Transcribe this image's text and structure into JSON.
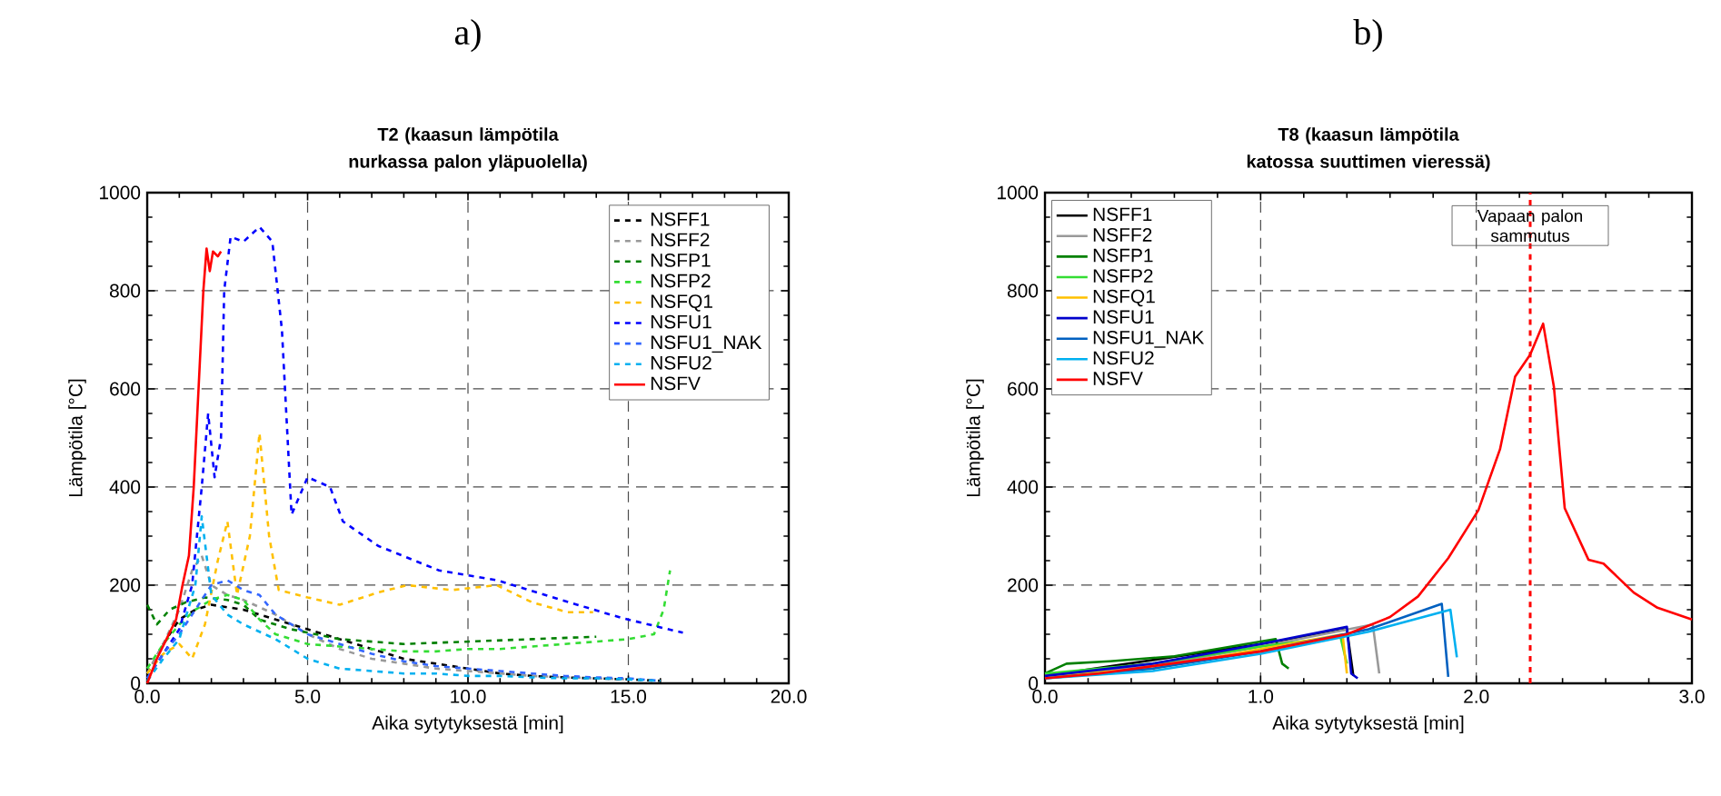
{
  "chart_data": [
    {
      "type": "line",
      "title": "a)",
      "subtitle": "T2 (kaasun lämpötila nurkassa palon yläpuolella)",
      "xlabel": "Aika sytytyksestä [min]",
      "ylabel": "Lämpötila  [°C]",
      "xlim": [
        0,
        20
      ],
      "ylim": [
        0,
        1000
      ],
      "xticks": [
        {
          "value": 0,
          "label": "0.0"
        },
        {
          "value": 5,
          "label": "5.0"
        },
        {
          "value": 10,
          "label": "10.0"
        },
        {
          "value": 15,
          "label": "15.0"
        },
        {
          "value": 20,
          "label": "20.0"
        }
      ],
      "yticks": [
        0,
        200,
        400,
        600,
        800,
        1000
      ],
      "grid": true,
      "legend": "top right",
      "series": [
        {
          "name": "NSFF1",
          "color": "#000000",
          "line_style": "dashed",
          "x": [
            0,
            0.5,
            1,
            1.5,
            2,
            3,
            4,
            5,
            6,
            7,
            8,
            9,
            10,
            11,
            12,
            13,
            14,
            15,
            16
          ],
          "values": [
            20,
            80,
            130,
            150,
            160,
            150,
            130,
            110,
            90,
            70,
            50,
            40,
            30,
            20,
            15,
            12,
            10,
            8,
            5
          ]
        },
        {
          "name": "NSFF2",
          "color": "#999999",
          "line_style": "dashed",
          "x": [
            0,
            0.5,
            1,
            1.4,
            1.7,
            2,
            2.5,
            3,
            4,
            5,
            6,
            7,
            8,
            9,
            10,
            12,
            14,
            15
          ],
          "values": [
            20,
            80,
            150,
            230,
            260,
            200,
            180,
            170,
            140,
            100,
            70,
            50,
            40,
            30,
            25,
            15,
            10,
            8
          ]
        },
        {
          "name": "NSFP1",
          "color": "#008000",
          "line_style": "dashed",
          "x": [
            0,
            0.3,
            0.7,
            1.2,
            1.8,
            2.5,
            3,
            3.5,
            4.5,
            6,
            8,
            10,
            12,
            14
          ],
          "values": [
            160,
            120,
            150,
            165,
            175,
            170,
            160,
            130,
            110,
            90,
            80,
            85,
            90,
            95
          ]
        },
        {
          "name": "NSFP2",
          "color": "#33dd33",
          "line_style": "dashed",
          "x": [
            0,
            0.5,
            1,
            1.5,
            2,
            2.5,
            3,
            3.5,
            4,
            5,
            6,
            7,
            8,
            9,
            10,
            11,
            12,
            13,
            14,
            15,
            15.8,
            16.1,
            16.3
          ],
          "values": [
            30,
            80,
            120,
            150,
            170,
            180,
            170,
            130,
            100,
            80,
            75,
            70,
            65,
            65,
            70,
            70,
            75,
            80,
            85,
            90,
            100,
            150,
            230
          ]
        },
        {
          "name": "NSFQ1",
          "color": "#ffc000",
          "line_style": "dashed",
          "x": [
            0,
            0.5,
            1,
            1.4,
            1.8,
            2.2,
            2.5,
            2.8,
            3.2,
            3.5,
            3.8,
            4.1,
            5,
            6,
            7.2,
            8.1,
            9.5,
            10.9,
            12,
            13.1,
            13.9
          ],
          "values": [
            20,
            60,
            80,
            50,
            120,
            250,
            330,
            180,
            300,
            510,
            300,
            190,
            175,
            160,
            185,
            200,
            190,
            200,
            165,
            145,
            145
          ]
        },
        {
          "name": "NSFU1",
          "color": "#0000ff",
          "line_style": "dashed",
          "x": [
            0,
            0.5,
            1,
            1.4,
            1.7,
            1.9,
            2.1,
            2.3,
            2.4,
            2.6,
            3,
            3.5,
            3.9,
            4.2,
            4.5,
            5,
            5.7,
            6.1,
            7.2,
            9.1,
            10.9,
            12.9,
            14.8,
            16.7
          ],
          "values": [
            10,
            60,
            110,
            200,
            400,
            550,
            420,
            500,
            800,
            910,
            900,
            930,
            900,
            720,
            344,
            420,
            400,
            330,
            280,
            230,
            210,
            170,
            133,
            103
          ]
        },
        {
          "name": "NSFU1_NAK",
          "color": "#3366ff",
          "line_style": "dashed",
          "x": [
            0,
            0.5,
            1,
            1.5,
            2,
            2.5,
            3,
            3.5,
            4,
            5,
            6,
            7,
            8,
            9,
            10,
            11,
            12,
            13,
            14,
            15,
            16
          ],
          "values": [
            10,
            60,
            100,
            150,
            200,
            210,
            190,
            180,
            140,
            100,
            80,
            60,
            45,
            35,
            30,
            25,
            20,
            15,
            12,
            10,
            5
          ]
        },
        {
          "name": "NSFU2",
          "color": "#00b0f0",
          "line_style": "dashed",
          "x": [
            0,
            0.5,
            1,
            1.5,
            1.7,
            2,
            2.5,
            3,
            4,
            5,
            6,
            7,
            8,
            9,
            10,
            11,
            12,
            13,
            14,
            15,
            16
          ],
          "values": [
            5,
            50,
            90,
            200,
            340,
            180,
            140,
            120,
            90,
            50,
            30,
            25,
            20,
            20,
            15,
            15,
            12,
            10,
            10,
            8,
            5
          ]
        },
        {
          "name": "NSFV",
          "color": "#ff0000",
          "line_style": "solid",
          "x": [
            0,
            0.3,
            0.6,
            0.9,
            1.1,
            1.3,
            1.45,
            1.6,
            1.75,
            1.85,
            1.95,
            2.05,
            2.2,
            2.3
          ],
          "values": [
            0,
            50,
            90,
            130,
            200,
            260,
            400,
            600,
            800,
            886,
            840,
            880,
            870,
            880
          ]
        }
      ]
    },
    {
      "type": "line",
      "title": "b)",
      "subtitle": "T8 (kaasun lämpötila katossa suuttimen vieressä)",
      "xlabel": "Aika sytytyksestä [min]",
      "ylabel": "Lämpötila  [°C]",
      "xlim": [
        0,
        3
      ],
      "ylim": [
        0,
        1000
      ],
      "xticks": [
        {
          "value": 0,
          "label": "0.0"
        },
        {
          "value": 1,
          "label": "1.0"
        },
        {
          "value": 2,
          "label": "2.0"
        },
        {
          "value": 3,
          "label": "3.0"
        }
      ],
      "yticks": [
        0,
        200,
        400,
        600,
        800,
        1000
      ],
      "grid": true,
      "legend": "top left",
      "ref_lines": [
        {
          "axis": "x",
          "value": 2.25,
          "label": "Vapaan palon sammutus",
          "color": "#ff0000",
          "line_style": "dashed"
        }
      ],
      "series": [
        {
          "name": "NSFF1",
          "color": "#000000",
          "line_style": "solid",
          "x": [
            0,
            0.5,
            1.0,
            1.4,
            1.43
          ],
          "values": [
            15,
            null,
            80,
            110,
            15
          ]
        },
        {
          "name": "NSFF2",
          "color": "#999999",
          "line_style": "solid",
          "x": [
            0,
            0.5,
            1.0,
            1.52,
            1.55
          ],
          "values": [
            15,
            35,
            75,
            120,
            20
          ]
        },
        {
          "name": "NSFP1",
          "color": "#008000",
          "line_style": "solid",
          "x": [
            0,
            0.1,
            0.3,
            0.6,
            1.0,
            1.07,
            1.1,
            1.13
          ],
          "values": [
            20,
            40,
            45,
            55,
            85,
            90,
            40,
            30
          ]
        },
        {
          "name": "NSFP2",
          "color": "#33dd33",
          "line_style": "solid",
          "x": [
            0,
            0.5,
            1.0,
            1.37,
            1.4
          ],
          "values": [
            20,
            40,
            75,
            95,
            40
          ]
        },
        {
          "name": "NSFQ1",
          "color": "#ffc000",
          "line_style": "solid",
          "x": [
            0,
            0.5,
            1.0,
            1.38,
            1.4
          ],
          "values": [
            15,
            30,
            70,
            100,
            20
          ]
        },
        {
          "name": "NSFU1",
          "color": "#0000cc",
          "line_style": "solid",
          "x": [
            0,
            0.5,
            1.0,
            1.4,
            1.42,
            1.45
          ],
          "values": [
            15,
            40,
            80,
            115,
            20,
            10
          ]
        },
        {
          "name": "NSFU1_NAK",
          "color": "#0060c0",
          "line_style": "solid",
          "x": [
            0,
            0.5,
            1.0,
            1.5,
            1.84,
            1.87
          ],
          "values": [
            10,
            30,
            65,
            110,
            162,
            13
          ]
        },
        {
          "name": "NSFU2",
          "color": "#00b0f0",
          "line_style": "solid",
          "x": [
            0,
            0.5,
            1.0,
            1.5,
            1.88,
            1.91
          ],
          "values": [
            10,
            25,
            60,
            105,
            150,
            53
          ]
        },
        {
          "name": "NSFV",
          "color": "#ff0000",
          "line_style": "solid",
          "x": [
            0,
            0.25,
            0.5,
            1.0,
            1.4,
            1.6,
            1.73,
            1.87,
            2.01,
            2.11,
            2.18,
            2.25,
            2.31,
            2.36,
            2.41,
            2.52,
            2.59,
            2.73,
            2.84,
            3.0
          ],
          "values": [
            10,
            20,
            35,
            65,
            100,
            135,
            177,
            255,
            353,
            477,
            625,
            670,
            733,
            604,
            357,
            252,
            244,
            185,
            154,
            130
          ]
        }
      ]
    }
  ]
}
